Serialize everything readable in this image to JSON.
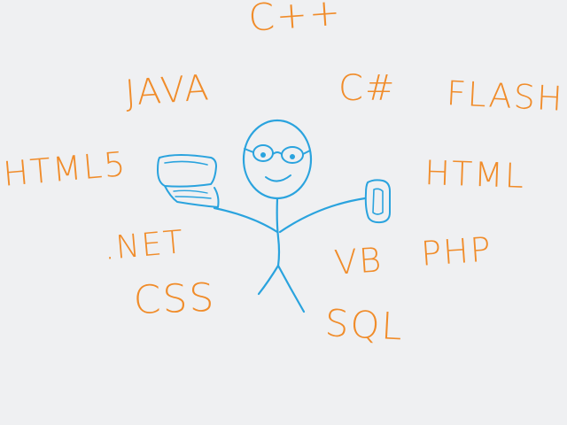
{
  "colors": {
    "background": "#eff0f2",
    "words": "#f08c2a",
    "figure": "#2aa3de"
  },
  "words": {
    "cpp": "C++",
    "java": "JAVA",
    "csharp": "C#",
    "flash": "FLASH",
    "html5": "HTML5",
    "html": "HTML",
    "dotnet": ".NET",
    "vb": "VB",
    "php": "PHP",
    "css": "CSS",
    "sql": "SQL"
  },
  "icons": {
    "figure": "stick-figure-programmer",
    "laptop": "laptop-icon",
    "phone": "phone-icon"
  }
}
